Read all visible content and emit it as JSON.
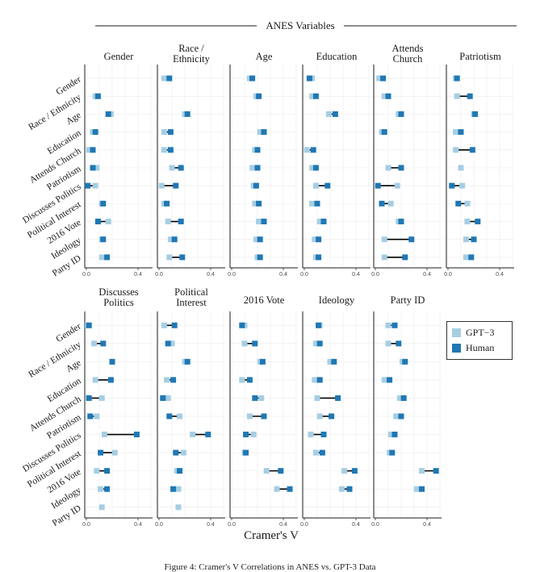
{
  "colors": {
    "gpt3": "#a6cee3",
    "human": "#1f78b4"
  },
  "super_title": "ANES Variables",
  "xlabel": "Cramer's V",
  "caption": "Figure 4: Cramer's V Correlations in ANES vs. GPT-3 Data",
  "legend": [
    {
      "key": "gpt3",
      "label": "GPT−3"
    },
    {
      "key": "human",
      "label": "Human"
    }
  ],
  "chart_data": {
    "type": "dot-range",
    "xlim": [
      0,
      0.5
    ],
    "x_ticks": [
      "0.0",
      "0.4"
    ],
    "x_tick_values": [
      0.0,
      0.4
    ],
    "row_labels": [
      "Gender",
      "Race / Ethnicity",
      "Age",
      "Education",
      "Attends Church",
      "Patriotism",
      "Discusses Politics",
      "Political Interest",
      "2016 Vote",
      "Ideology",
      "Party ID"
    ],
    "panels": [
      {
        "title": [
          "Gender"
        ],
        "gpt3": [
          null,
          0.07,
          0.19,
          0.05,
          0.02,
          0.08,
          0.07,
          0.12,
          0.17,
          0.12,
          0.12
        ],
        "human": [
          null,
          0.09,
          0.17,
          0.07,
          0.05,
          0.05,
          0.01,
          0.13,
          0.09,
          0.13,
          0.16
        ]
      },
      {
        "title": [
          "Race /",
          "Ethnicity"
        ],
        "gpt3": [
          0.04,
          null,
          0.2,
          0.04,
          0.04,
          0.1,
          0.02,
          0.04,
          0.07,
          0.09,
          0.08
        ],
        "human": [
          0.08,
          null,
          0.22,
          0.09,
          0.09,
          0.17,
          0.13,
          0.06,
          0.17,
          0.12,
          0.18
        ]
      },
      {
        "title": [
          "Age"
        ],
        "gpt3": [
          0.14,
          0.19,
          null,
          0.22,
          0.18,
          0.16,
          0.17,
          0.18,
          0.21,
          0.19,
          0.2
        ],
        "human": [
          0.16,
          0.21,
          null,
          0.25,
          0.2,
          0.2,
          0.19,
          0.21,
          0.25,
          0.22,
          0.22
        ]
      },
      {
        "title": [
          "Education"
        ],
        "gpt3": [
          0.06,
          0.06,
          0.19,
          null,
          0.02,
          0.06,
          0.09,
          0.06,
          0.12,
          0.08,
          0.09
        ],
        "human": [
          0.04,
          0.09,
          0.24,
          null,
          0.07,
          0.09,
          0.18,
          0.1,
          0.15,
          0.11,
          0.11
        ]
      },
      {
        "title": [
          "Attends",
          "Church"
        ],
        "gpt3": [
          0.03,
          0.07,
          0.18,
          0.05,
          null,
          0.1,
          0.17,
          0.12,
          0.18,
          0.07,
          0.07
        ],
        "human": [
          0.06,
          0.1,
          0.2,
          0.07,
          null,
          0.2,
          0.02,
          0.05,
          0.2,
          0.28,
          0.23
        ]
      },
      {
        "title": [
          "Patriotism"
        ],
        "gpt3": [
          0.06,
          0.07,
          0.2,
          0.06,
          0.06,
          0.1,
          0.11,
          0.15,
          0.15,
          0.14,
          0.14
        ],
        "human": [
          0.07,
          0.17,
          0.21,
          0.1,
          0.19,
          null,
          0.03,
          0.08,
          0.23,
          0.2,
          0.18
        ]
      },
      {
        "title": [
          "Discusses",
          "Politics"
        ],
        "gpt3": [
          0.01,
          0.06,
          0.2,
          0.07,
          0.12,
          0.08,
          0.14,
          0.22,
          0.08,
          0.11,
          0.12
        ],
        "human": [
          0.02,
          0.13,
          0.2,
          0.19,
          0.02,
          0.03,
          0.39,
          0.11,
          0.16,
          0.16,
          null
        ]
      },
      {
        "title": [
          "Political",
          "Interest"
        ],
        "gpt3": [
          0.04,
          0.1,
          0.2,
          0.06,
          0.07,
          0.16,
          0.26,
          0.19,
          0.14,
          0.15,
          0.15
        ],
        "human": [
          0.12,
          0.07,
          0.22,
          0.11,
          0.03,
          0.08,
          0.38,
          0.13,
          0.16,
          0.11,
          null
        ]
      },
      {
        "title": [
          "2016 Vote"
        ],
        "gpt3": [
          0.1,
          0.1,
          0.22,
          0.08,
          0.23,
          0.14,
          0.17,
          0.1,
          0.27,
          0.35,
          null
        ],
        "human": [
          0.08,
          0.18,
          0.24,
          0.14,
          0.18,
          0.25,
          0.11,
          0.11,
          0.38,
          0.45,
          null
        ]
      },
      {
        "title": [
          "Ideology"
        ],
        "gpt3": [
          0.12,
          0.09,
          0.2,
          0.08,
          0.1,
          0.12,
          0.05,
          0.09,
          0.31,
          0.29,
          null
        ],
        "human": [
          0.11,
          0.12,
          0.23,
          0.12,
          0.26,
          0.21,
          0.15,
          0.14,
          0.39,
          0.35,
          null
        ]
      },
      {
        "title": [
          "Party ID"
        ],
        "gpt3": [
          0.1,
          0.1,
          0.21,
          0.07,
          0.19,
          0.16,
          0.12,
          0.11,
          0.36,
          0.32,
          null
        ],
        "human": [
          0.15,
          0.18,
          0.23,
          0.11,
          0.22,
          0.2,
          0.15,
          0.13,
          0.47,
          0.36,
          null
        ]
      }
    ]
  }
}
